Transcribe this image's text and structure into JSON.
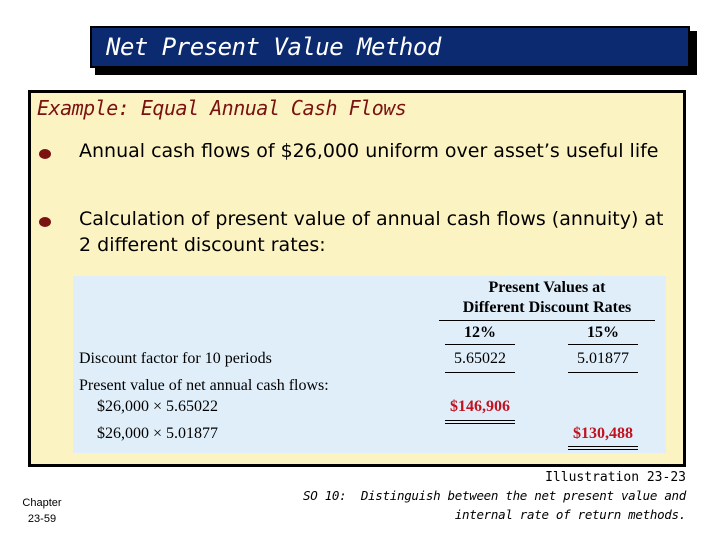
{
  "slide": {
    "title": "Net Present Value Method",
    "example_heading": "Example: Equal Annual Cash Flows",
    "bullets": [
      {
        "text": "Annual cash flows of $26,000 uniform over asset’s useful life"
      },
      {
        "text": "Calculation of present value of annual cash flows (annuity) at 2 different discount rates:"
      }
    ]
  },
  "table": {
    "header_line1": "Present Values at",
    "header_line2": "Different Discount Rates",
    "col1_head": "12%",
    "col2_head": "15%",
    "rows": [
      {
        "label": "Discount factor for 10 periods",
        "col1": "5.65022",
        "col2": "5.01877"
      },
      {
        "label": "Present value of net annual cash flows:",
        "col1": "",
        "col2": ""
      },
      {
        "label": "$26,000 × 5.65022",
        "col1": "$146,906",
        "col2": ""
      },
      {
        "label": "$26,000 × 5.01877",
        "col1": "",
        "col2": "$130,488"
      }
    ]
  },
  "footer": {
    "chapter_line1": "Chapter",
    "chapter_line2": "23-59",
    "illustration": "Illustration 23-23",
    "so_line1": "SO 10:  Distinguish between the net present value and",
    "so_line2": "internal rate of return methods."
  },
  "colors": {
    "title_bg": "#0b2a6f",
    "panel_bg": "#fcf3c2",
    "heading_color": "#7a1212",
    "table_bg": "#dfeef9",
    "highlight_red": "#c1121f"
  }
}
